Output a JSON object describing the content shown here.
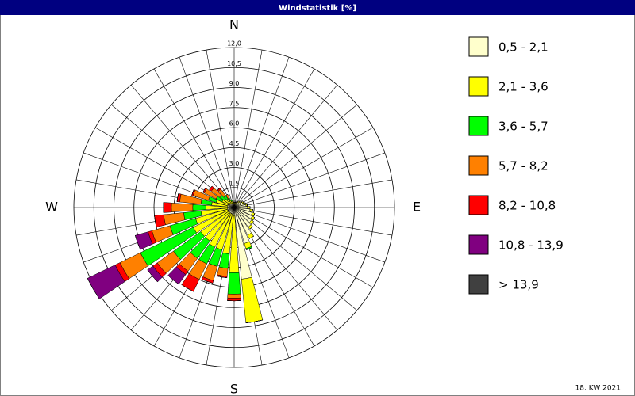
{
  "chart_data": {
    "type": "windrose",
    "title": "Windstatistik [%]",
    "categories": [
      "N",
      null,
      null,
      null,
      null,
      null,
      null,
      null,
      null,
      "E",
      null,
      null,
      null,
      null,
      null,
      null,
      null,
      null,
      "S",
      null,
      null,
      null,
      null,
      null,
      null,
      null,
      null,
      "W",
      null,
      null,
      null,
      null,
      null,
      null,
      null,
      null
    ],
    "series": [
      {
        "name": "0,5 - 2,1",
        "color": "#ffffcc",
        "values": [
          0.3,
          0.3,
          0.3,
          0.4,
          0.5,
          0.6,
          0.7,
          0.8,
          0.9,
          1.0,
          1.2,
          1.4,
          1.5,
          1.6,
          1.8,
          2.3,
          2.8,
          5.4,
          0.6,
          0.5,
          0.5,
          0.5,
          0.5,
          0.5,
          0.5,
          0.5,
          0.5,
          0.5,
          0.5,
          0.5,
          0.4,
          0.4,
          0.4,
          0.3,
          0.3,
          0.3
        ]
      },
      {
        "name": "2,1 - 3,6",
        "color": "#ffff00",
        "values": [
          0.1,
          0.1,
          0.1,
          0.1,
          0.1,
          0.1,
          0.1,
          0.1,
          0.1,
          0.2,
          0.2,
          0.2,
          0.2,
          0.2,
          0.2,
          0.3,
          0.4,
          3.3,
          4.3,
          3.0,
          2.8,
          2.8,
          2.6,
          2.6,
          2.9,
          2.5,
          2.0,
          1.6,
          1.2,
          0.9,
          0.6,
          0.5,
          0.4,
          0.3,
          0.2,
          0.1
        ]
      },
      {
        "name": "3,6 - 5,7",
        "color": "#00ff00",
        "values": [
          0,
          0,
          0,
          0,
          0,
          0,
          0,
          0,
          0,
          0,
          0,
          0,
          0,
          0,
          0,
          0,
          0.1,
          0,
          1.6,
          1.1,
          1.3,
          1.4,
          1.6,
          2.5,
          4.4,
          2.0,
          1.3,
          1.0,
          0.8,
          0.6,
          0.5,
          0.4,
          0.3,
          0.2,
          0.1,
          0
        ]
      },
      {
        "name": "5,7 - 8,2",
        "color": "#ff8000",
        "values": [
          0,
          0,
          0,
          0,
          0,
          0,
          0,
          0,
          0,
          0,
          0,
          0,
          0,
          0,
          0,
          0,
          0,
          0,
          0.3,
          0.6,
          1.1,
          1.3,
          1.2,
          1.5,
          1.7,
          1.4,
          1.5,
          1.6,
          1.6,
          1.2,
          1.0,
          0.8,
          0.6,
          0.3,
          0,
          0
        ]
      },
      {
        "name": "8,2 - 10,8",
        "color": "#ff0000",
        "values": [
          0,
          0,
          0,
          0,
          0,
          0,
          0,
          0,
          0,
          0,
          0,
          0,
          0,
          0,
          0,
          0,
          0,
          0,
          0.2,
          0.1,
          0.2,
          1.0,
          0.3,
          0.4,
          0.4,
          0.3,
          0.7,
          0.6,
          0.2,
          0.1,
          0.1,
          0.2,
          0.1,
          0,
          0,
          0
        ]
      },
      {
        "name": "10,8 - 13,9",
        "color": "#800080",
        "values": [
          0,
          0,
          0,
          0,
          0,
          0,
          0,
          0,
          0,
          0,
          0,
          0,
          0,
          0,
          0,
          0,
          0,
          0,
          0,
          0,
          0,
          0,
          0.9,
          0.5,
          2.3,
          1.0,
          0,
          0,
          0,
          0,
          0,
          0,
          0,
          0,
          0,
          0
        ]
      },
      {
        "name": "> 13,9",
        "color": "#404040",
        "values": [
          0,
          0,
          0,
          0,
          0,
          0,
          0,
          0,
          0,
          0,
          0,
          0,
          0,
          0,
          0,
          0,
          0,
          0,
          0,
          0,
          0,
          0,
          0,
          0,
          0,
          0,
          0,
          0,
          0,
          0,
          0,
          0,
          0,
          0,
          0,
          0
        ]
      }
    ],
    "ylim": [
      0,
      12
    ],
    "yticks": [
      0,
      {
        "value": 1.5,
        "label": "1,5"
      },
      {
        "value": 3,
        "label": "3,0"
      },
      {
        "value": 4.5,
        "label": "4,5"
      },
      {
        "value": 6,
        "label": "6,0"
      },
      {
        "value": 7.5,
        "label": "7,5"
      },
      {
        "value": 9,
        "label": "9,0"
      },
      {
        "value": 10.5,
        "label": "10,5"
      },
      {
        "value": 12,
        "label": "12,0"
      }
    ],
    "footer": "18. KW 2021"
  }
}
